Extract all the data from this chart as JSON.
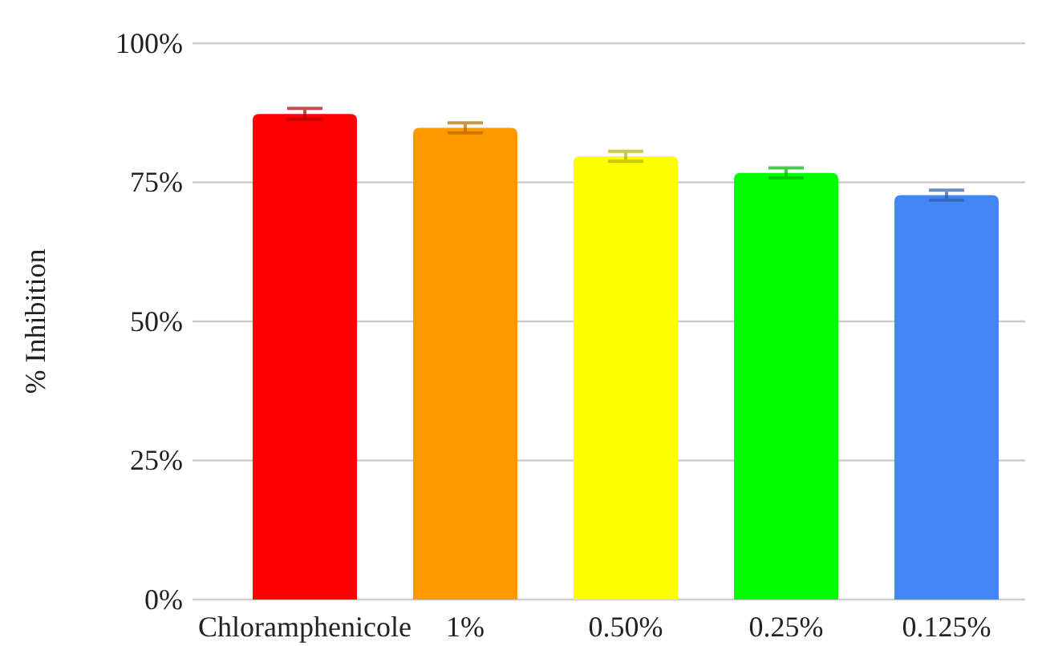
{
  "chart_data": {
    "type": "bar",
    "ylabel": "% Inhibition",
    "categories": [
      "Chloramphenicole",
      "1%",
      "0.50%",
      "0.25%",
      "0.125%"
    ],
    "values": [
      87.3,
      84.8,
      79.7,
      76.7,
      72.7
    ],
    "errors": [
      1,
      0.9,
      0.9,
      0.9,
      0.9
    ],
    "colors": [
      "#ff0000",
      "#ff9900",
      "#ffff00",
      "#00ff00",
      "#4285f4"
    ],
    "ylim": [
      0,
      100
    ],
    "yticks": [
      {
        "value": 0,
        "label": "0%"
      },
      {
        "value": 25,
        "label": "25%"
      },
      {
        "value": 50,
        "label": "50%"
      },
      {
        "value": 75,
        "label": "75%"
      },
      {
        "value": 100,
        "label": "100%"
      }
    ],
    "grid": "y"
  }
}
